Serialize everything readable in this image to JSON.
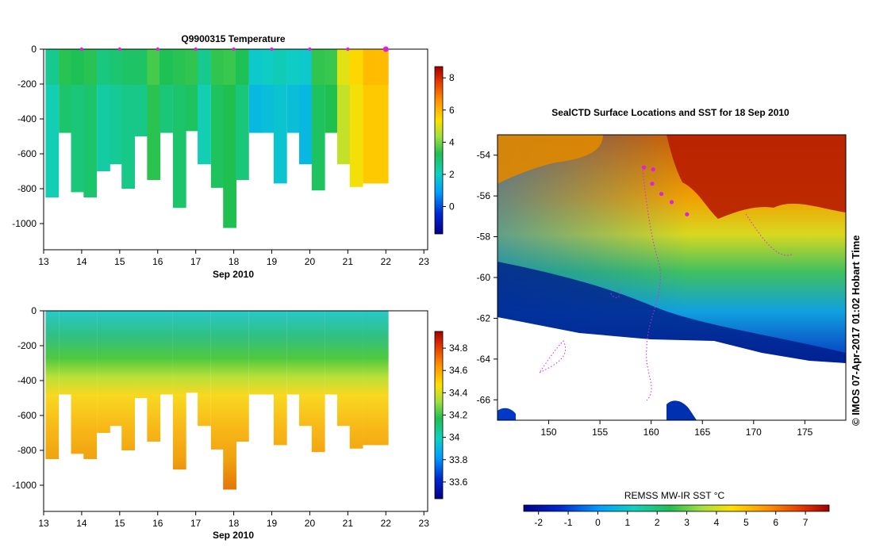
{
  "chart_data": [
    {
      "type": "heatmap",
      "title": "Q9900315  Temperature",
      "xlabel": "Sep 2010",
      "ylabel": "",
      "x_ticks": [
        "13",
        "14",
        "15",
        "16",
        "17",
        "18",
        "19",
        "20",
        "21",
        "22",
        "23"
      ],
      "y_ticks": [
        "0",
        "-200",
        "-400",
        "-600",
        "-800",
        "-1000"
      ],
      "xlim": [
        13,
        23.1
      ],
      "ylim": [
        -1150,
        0
      ],
      "colorbar": {
        "ticks": [
          "0",
          "2",
          "4",
          "6",
          "8"
        ],
        "range": [
          -1.7,
          8.7
        ]
      },
      "profile_markers_day": [
        14,
        15,
        16,
        17,
        18,
        19,
        20,
        21,
        22
      ],
      "profiles": {
        "time_day": [
          13.05,
          13.4,
          13.72,
          14.05,
          14.4,
          14.72,
          15.05,
          15.4,
          15.72,
          16.05,
          16.4,
          16.72,
          17.05,
          17.4,
          17.72,
          18.05,
          18.4,
          18.72,
          19.05,
          19.4,
          19.72,
          20.05,
          20.4,
          20.72,
          21.05,
          21.4,
          21.72
        ],
        "max_depth_m": [
          850,
          480,
          820,
          850,
          700,
          660,
          800,
          500,
          750,
          480,
          910,
          470,
          660,
          795,
          1025,
          750,
          480,
          480,
          770,
          480,
          660,
          810,
          480,
          660,
          790,
          770,
          770
        ],
        "surface_temp_c": [
          2.2,
          2.7,
          2.6,
          2.7,
          2.3,
          2.4,
          2.5,
          2.5,
          3.0,
          2.6,
          2.7,
          2.8,
          2.2,
          2.8,
          2.9,
          2.6,
          1.7,
          1.8,
          1.9,
          1.8,
          1.7,
          2.8,
          2.9,
          4.4,
          4.8,
          5.3,
          5.3
        ]
      }
    },
    {
      "type": "heatmap",
      "title": "",
      "xlabel": "Sep 2010",
      "ylabel": "",
      "x_ticks": [
        "13",
        "14",
        "15",
        "16",
        "17",
        "18",
        "19",
        "20",
        "21",
        "22",
        "23"
      ],
      "y_ticks": [
        "0",
        "-200",
        "-400",
        "-600",
        "-800",
        "-1000"
      ],
      "xlim": [
        13,
        23.1
      ],
      "ylim": [
        -1150,
        0
      ],
      "colorbar": {
        "ticks": [
          "33.6",
          "33.8",
          "34",
          "34.2",
          "34.4",
          "34.6",
          "34.8"
        ],
        "range": [
          33.45,
          34.95
        ]
      }
    },
    {
      "type": "heatmap",
      "title": "SealCTD Surface Locations and SST for 18 Sep 2010",
      "xlabel": "",
      "ylabel": "",
      "x_ticks": [
        "150",
        "155",
        "160",
        "165",
        "170",
        "175"
      ],
      "y_ticks": [
        "-54",
        "-56",
        "-58",
        "-60",
        "-62",
        "-64",
        "-66"
      ],
      "xlim": [
        145,
        179
      ],
      "ylim": [
        -67,
        -53
      ],
      "colorbar": {
        "label": "REMSS MW-IR SST °C",
        "ticks": [
          "-2",
          "-1",
          "0",
          "1",
          "2",
          "3",
          "4",
          "5",
          "6",
          "7"
        ],
        "range": [
          -2.5,
          7.8
        ]
      },
      "surface_locations": [
        {
          "lon": 159.3,
          "lat": -54.6
        },
        {
          "lon": 160.2,
          "lat": -54.7
        },
        {
          "lon": 160.1,
          "lat": -55.4
        },
        {
          "lon": 161.0,
          "lat": -55.9
        },
        {
          "lon": 162.0,
          "lat": -56.3
        },
        {
          "lon": 163.5,
          "lat": -56.9
        }
      ]
    }
  ],
  "copyright": "© IMOS 07-Apr-2017 01:02 Hobart Time"
}
